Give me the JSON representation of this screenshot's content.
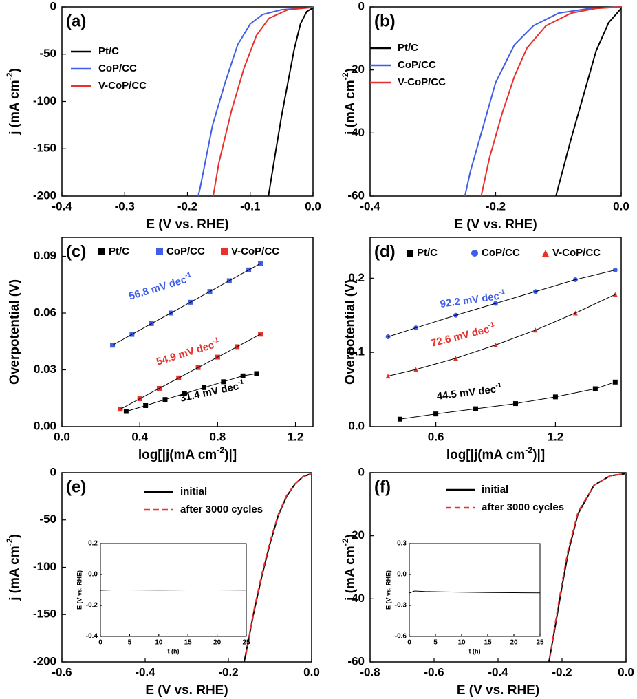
{
  "chart_data": [
    {
      "type": "line",
      "label": "(a)",
      "xlabel": "E (V vs. RHE)",
      "ylabel": [
        "j (mA cm",
        "-2",
        ")"
      ],
      "legend": "upper left",
      "xlim": [
        -0.4,
        0
      ],
      "ylim": [
        -200,
        0
      ],
      "xticks": [
        -0.4,
        -0.3,
        -0.2,
        -0.1,
        {
          "value": 0,
          "label": "0.0"
        }
      ],
      "yticks": [
        -200,
        -150,
        -100,
        -50,
        0
      ],
      "series": [
        {
          "name": "Pt/C",
          "color": "#000000",
          "x": [
            -0.071,
            -0.06,
            -0.05,
            -0.04,
            -0.03,
            -0.02,
            -0.01,
            0
          ],
          "values": [
            -200,
            -155,
            -115,
            -80,
            -45,
            -18,
            -5,
            -1
          ]
        },
        {
          "name": "CoP/CC",
          "color": "#3f5fe8",
          "x": [
            -0.183,
            -0.18,
            -0.16,
            -0.14,
            -0.12,
            -0.1,
            -0.08,
            -0.05,
            0
          ],
          "values": [
            -200,
            -192,
            -125,
            -80,
            -40,
            -18,
            -8,
            -3,
            -0.5
          ]
        },
        {
          "name": "V-CoP/CC",
          "color": "#e8312c",
          "x": [
            -0.159,
            -0.15,
            -0.13,
            -0.11,
            -0.09,
            -0.07,
            -0.04,
            0
          ],
          "values": [
            -200,
            -165,
            -110,
            -65,
            -30,
            -12,
            -3,
            -0.5
          ]
        }
      ]
    },
    {
      "type": "line",
      "label": "(b)",
      "xlabel": "E (V vs. RHE)",
      "ylabel": [
        "j (mA cm",
        "-2",
        ")"
      ],
      "legend": "upper left",
      "xlim": [
        -0.4,
        0
      ],
      "ylim": [
        -60,
        0
      ],
      "xticks": [
        -0.4,
        -0.2,
        {
          "value": 0,
          "label": "0.0"
        }
      ],
      "yticks": [
        -60,
        -40,
        -20,
        0
      ],
      "series": [
        {
          "name": "Pt/C",
          "color": "#000000",
          "x": [
            -0.104,
            -0.08,
            -0.06,
            -0.04,
            -0.02,
            0
          ],
          "values": [
            -60,
            -42,
            -28,
            -14,
            -5,
            -0.5
          ]
        },
        {
          "name": "CoP/CC",
          "color": "#3f5fe8",
          "x": [
            -0.249,
            -0.24,
            -0.22,
            -0.2,
            -0.17,
            -0.14,
            -0.1,
            -0.05,
            0
          ],
          "values": [
            -60,
            -52,
            -38,
            -24,
            -12,
            -6,
            -2,
            -0.5,
            0
          ]
        },
        {
          "name": "V-CoP/CC",
          "color": "#e8312c",
          "x": [
            -0.223,
            -0.21,
            -0.19,
            -0.17,
            -0.15,
            -0.12,
            -0.08,
            -0.04,
            0
          ],
          "values": [
            -60,
            -48,
            -34,
            -22,
            -13,
            -6,
            -2,
            -0.5,
            0
          ]
        }
      ]
    },
    {
      "type": "scatter",
      "label": "(c)",
      "xlabel": [
        "log[|j(mA cm",
        "-2",
        ")|]"
      ],
      "ylabel": "Overpotential (V)",
      "legend": "top",
      "xlim": [
        0,
        1.29
      ],
      "ylim": [
        0,
        0.1
      ],
      "xticks": [
        {
          "value": 0,
          "label": "0.0"
        },
        0.4,
        0.8,
        1.2
      ],
      "yticks": [
        {
          "value": 0,
          "label": "0.00"
        },
        0.03,
        0.06,
        0.09
      ],
      "series": [
        {
          "name": "Pt/C",
          "color": "#000000",
          "marker": "square",
          "x": [
            0.33,
            0.43,
            0.53,
            0.63,
            0.73,
            0.83,
            0.93,
            1.0
          ],
          "values": [
            0.008,
            0.0111,
            0.0143,
            0.0174,
            0.0206,
            0.0237,
            0.0268,
            0.028
          ]
        },
        {
          "name": "CoP/CC",
          "color": "#3f5fe8",
          "marker": "square",
          "x": [
            0.26,
            0.36,
            0.46,
            0.56,
            0.66,
            0.76,
            0.86,
            0.96,
            1.02
          ],
          "values": [
            0.043,
            0.0487,
            0.0544,
            0.06,
            0.0657,
            0.0714,
            0.0771,
            0.0828,
            0.0862
          ]
        },
        {
          "name": "V-CoP/CC",
          "color": "#e8312c",
          "marker": "square",
          "x": [
            0.3,
            0.4,
            0.5,
            0.6,
            0.7,
            0.8,
            0.9,
            1.02
          ],
          "values": [
            0.0092,
            0.0147,
            0.0202,
            0.0257,
            0.0312,
            0.0367,
            0.0422,
            0.0488
          ]
        }
      ],
      "annotations": [
        {
          "text": "56.8 mV dec",
          "sup": "-1",
          "color": "#3f5fe8"
        },
        {
          "text": "54.9 mV dec",
          "sup": "-1",
          "color": "#e8312c"
        },
        {
          "text": "31.4 mV dec",
          "sup": "-1",
          "color": "#000000"
        }
      ]
    },
    {
      "type": "scatter",
      "label": "(d)",
      "xlabel": [
        "log[|j(mA cm",
        "-2",
        ")|]"
      ],
      "ylabel": "Overpotential (V)",
      "legend": "top",
      "xlim": [
        0.27,
        1.53
      ],
      "ylim": [
        0,
        0.255
      ],
      "xticks": [
        0.6,
        1.2
      ],
      "yticks": [
        {
          "value": 0,
          "label": "0.0"
        },
        0.1,
        0.2
      ],
      "series": [
        {
          "name": "Pt/C",
          "color": "#000000",
          "marker": "square",
          "x": [
            0.42,
            0.6,
            0.8,
            1.0,
            1.2,
            1.4,
            1.5
          ],
          "values": [
            0.01,
            0.017,
            0.024,
            0.031,
            0.04,
            0.051,
            0.06
          ]
        },
        {
          "name": "CoP/CC",
          "color": "#3f5fe8",
          "marker": "circle",
          "x": [
            0.36,
            0.5,
            0.7,
            0.9,
            1.1,
            1.3,
            1.5
          ],
          "values": [
            0.121,
            0.133,
            0.15,
            0.166,
            0.182,
            0.198,
            0.211
          ]
        },
        {
          "name": "V-CoP/CC",
          "color": "#e8312c",
          "marker": "triangle",
          "x": [
            0.36,
            0.5,
            0.7,
            0.9,
            1.1,
            1.3,
            1.5
          ],
          "values": [
            0.068,
            0.077,
            0.092,
            0.11,
            0.13,
            0.153,
            0.178
          ]
        }
      ],
      "annotations": [
        {
          "text": "92.2 mV dec",
          "sup": "-1",
          "color": "#3f5fe8"
        },
        {
          "text": "72.6 mV dec",
          "sup": "-1",
          "color": "#e8312c"
        },
        {
          "text": "44.5 mV dec",
          "sup": "-1",
          "color": "#000000"
        }
      ]
    },
    {
      "type": "line",
      "label": "(e)",
      "xlabel": "E (V vs. RHE)",
      "ylabel": [
        "j (mA cm",
        "-2",
        ")"
      ],
      "legend": "upper center",
      "xlim": [
        -0.6,
        0
      ],
      "ylim": [
        -200,
        0
      ],
      "xticks": [
        -0.6,
        -0.4,
        -0.2,
        {
          "value": 0,
          "label": "0.0"
        }
      ],
      "yticks": [
        -200,
        -150,
        -100,
        -50,
        0
      ],
      "series": [
        {
          "name": "initial",
          "color": "#000000",
          "linestyle": "solid",
          "x": [
            -0.162,
            -0.14,
            -0.12,
            -0.1,
            -0.08,
            -0.06,
            -0.04,
            -0.02,
            0
          ],
          "values": [
            -200,
            -150,
            -110,
            -75,
            -45,
            -25,
            -12,
            -4,
            -1
          ]
        },
        {
          "name": "after 3000 cycles",
          "color": "#e8312c",
          "linestyle": "dashed",
          "x": [
            -0.158,
            -0.14,
            -0.12,
            -0.1,
            -0.08,
            -0.06,
            -0.04,
            -0.02,
            0
          ],
          "values": [
            -193,
            -148,
            -108,
            -73,
            -44,
            -24,
            -12,
            -4,
            -1
          ]
        }
      ],
      "inset": {
        "type": "line",
        "xlabel": "t (h)",
        "ylabel": "E (V vs. RHE)",
        "xlim": [
          0,
          25
        ],
        "ylim": [
          -0.4,
          0.2
        ],
        "xticks": [
          0,
          5,
          10,
          15,
          20,
          25
        ],
        "yticks": [
          -0.4,
          -0.2,
          {
            "value": 0,
            "label": "0.0"
          },
          0.2
        ],
        "series": [
          {
            "color": "#000000",
            "x": [
              0,
              2,
              5,
              10,
              15,
              20,
              25
            ],
            "values": [
              -0.102,
              -0.1,
              -0.1,
              -0.101,
              -0.1,
              -0.1,
              -0.101
            ]
          }
        ]
      }
    },
    {
      "type": "line",
      "label": "(f)",
      "xlabel": "E (V vs. RHE)",
      "ylabel": [
        "j (mA cm",
        "-2",
        ")"
      ],
      "legend": "upper center",
      "xlim": [
        -0.8,
        0
      ],
      "ylim": [
        -60,
        0
      ],
      "xticks": [
        -0.8,
        -0.6,
        -0.4,
        -0.2,
        {
          "value": 0,
          "label": "0.0"
        }
      ],
      "yticks": [
        -60,
        -40,
        -20,
        0
      ],
      "series": [
        {
          "name": "initial",
          "color": "#000000",
          "linestyle": "solid",
          "x": [
            -0.241,
            -0.22,
            -0.2,
            -0.18,
            -0.15,
            -0.1,
            -0.05,
            0
          ],
          "values": [
            -60,
            -48,
            -36,
            -25,
            -13,
            -4,
            -1,
            -0.3
          ]
        },
        {
          "name": "after 3000 cycles",
          "color": "#e8312c",
          "linestyle": "dashed",
          "x": [
            -0.239,
            -0.22,
            -0.2,
            -0.18,
            -0.15,
            -0.1,
            -0.05,
            0
          ],
          "values": [
            -59,
            -47,
            -35,
            -24,
            -12.5,
            -4,
            -1,
            -0.3
          ]
        }
      ],
      "inset": {
        "type": "line",
        "xlabel": "t (h)",
        "ylabel": "E (V vs. RHE)",
        "xlim": [
          0,
          25
        ],
        "ylim": [
          -0.6,
          0.3
        ],
        "xticks": [
          0,
          5,
          10,
          15,
          20,
          25
        ],
        "yticks": [
          -0.6,
          -0.3,
          {
            "value": 0,
            "label": "0.0"
          },
          0.3
        ],
        "series": [
          {
            "color": "#000000",
            "x": [
              0,
              1,
              3,
              8,
              15,
              25
            ],
            "values": [
              -0.18,
              -0.16,
              -0.165,
              -0.17,
              -0.175,
              -0.178
            ]
          }
        ]
      }
    }
  ]
}
